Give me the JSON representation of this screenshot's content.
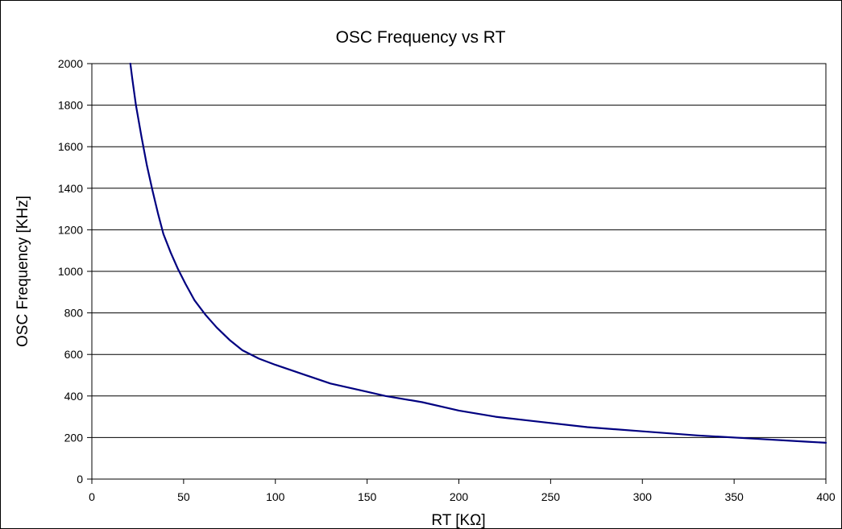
{
  "chart_data": {
    "type": "line",
    "title": "OSC Frequency vs RT",
    "xlabel": "RT [KΩ]",
    "ylabel": "OSC Frequency [KHz]",
    "xlim": [
      0,
      400
    ],
    "ylim": [
      0,
      2000
    ],
    "x_ticks": [
      "0",
      "50",
      "100",
      "150",
      "200",
      "250",
      "300",
      "350",
      "400"
    ],
    "y_ticks": [
      "0",
      "200",
      "400",
      "600",
      "800",
      "1000",
      "1200",
      "1400",
      "1600",
      "1800",
      "2000"
    ],
    "grid": "horizontal",
    "legend": "none",
    "line_color": "#000080",
    "series": [
      {
        "x": [
          21,
          22,
          24,
          27,
          30,
          33,
          36,
          39,
          43,
          47,
          51,
          56,
          62,
          68,
          75,
          82,
          91,
          100,
          110,
          120,
          130,
          150,
          160,
          180,
          200,
          220,
          240,
          270,
          300,
          330,
          360,
          390,
          400
        ],
        "values": [
          2000,
          1930,
          1800,
          1650,
          1510,
          1390,
          1280,
          1180,
          1090,
          1010,
          940,
          860,
          790,
          730,
          670,
          620,
          580,
          550,
          520,
          490,
          460,
          420,
          400,
          370,
          330,
          300,
          280,
          250,
          230,
          210,
          195,
          180,
          175
        ]
      }
    ]
  }
}
